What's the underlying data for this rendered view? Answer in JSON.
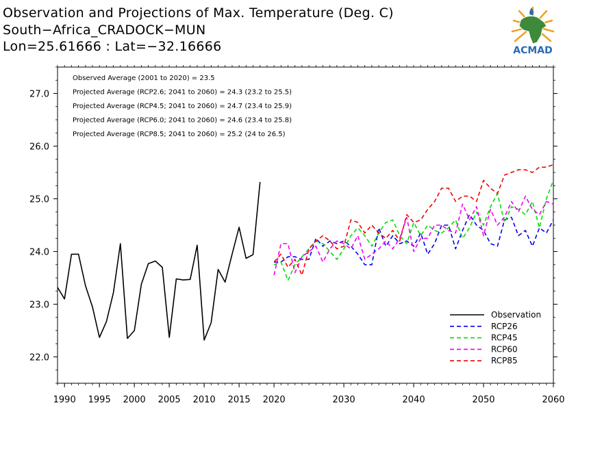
{
  "header": {
    "line1": "Observation and Projections of Max. Temperature (Deg. C)",
    "line2": "South−Africa_CRADOCK−MUN",
    "line3": "Lon=25.61666 : Lat=−32.16666"
  },
  "logo": {
    "text": "ACMAD",
    "icon": "africa-map-logo",
    "color_blue": "#2a6ab3",
    "color_green": "#3d8a3a",
    "color_orange": "#f0a020"
  },
  "chart_data": {
    "type": "line",
    "xlim": [
      1989,
      2060
    ],
    "ylim": [
      21.5,
      27.5
    ],
    "grid": false,
    "x_ticks": [
      {
        "value": 1990,
        "label": "1990"
      },
      {
        "value": 1995,
        "label": "1995"
      },
      {
        "value": 2000,
        "label": "2000"
      },
      {
        "value": 2005,
        "label": "2005"
      },
      {
        "value": 2010,
        "label": "2010"
      },
      {
        "value": 2015,
        "label": "2015"
      },
      {
        "value": 2020,
        "label": "2020"
      },
      {
        "value": 2030,
        "label": "2030"
      },
      {
        "value": 2040,
        "label": "2040"
      },
      {
        "value": 2050,
        "label": "2050"
      },
      {
        "value": 2060,
        "label": "2060"
      }
    ],
    "y_ticks": [
      {
        "value": 22,
        "label": "22.0"
      },
      {
        "value": 23,
        "label": "23.0"
      },
      {
        "value": 24,
        "label": "24.0"
      },
      {
        "value": 25,
        "label": "25.0"
      },
      {
        "value": 26,
        "label": "26.0"
      },
      {
        "value": 27,
        "label": "27.0"
      }
    ],
    "annotations": [
      "Observed Average (2001 to 2020) = 23.5",
      "Projected Average (RCP2.6; 2041 to 2060) = 24.3 (23.2 to 25.5)",
      "Projected Average (RCP4.5; 2041 to 2060) = 24.7 (23.4 to 25.9)",
      "Projected Average (RCP6.0; 2041 to 2060) = 24.6 (23.4 to 25.8)",
      "Projected Average (RCP8.5; 2041 to 2060) = 25.2 (24 to 26.5)"
    ],
    "legend_position": "bottom-right",
    "series": [
      {
        "name": "Observation",
        "color": "#000000",
        "dashed": false,
        "x": [
          1989,
          1990,
          1991,
          1992,
          1993,
          1994,
          1995,
          1996,
          1997,
          1998,
          1999,
          2000,
          2001,
          2002,
          2003,
          2004,
          2005,
          2006,
          2007,
          2008,
          2009,
          2010,
          2011,
          2012,
          2013,
          2014,
          2015,
          2016,
          2017,
          2018,
          2019
        ],
        "y": [
          23.32,
          23.1,
          23.95,
          23.95,
          23.35,
          22.95,
          22.37,
          22.67,
          23.22,
          24.15,
          22.35,
          22.5,
          23.38,
          23.77,
          23.82,
          23.7,
          22.37,
          23.48,
          23.46,
          23.47,
          24.12,
          22.32,
          22.65,
          23.66,
          23.42,
          23.95,
          24.46,
          23.87,
          23.94,
          25.32,
          null
        ]
      },
      {
        "name": "RCP26",
        "color": "#0000ee",
        "dashed": true,
        "x": [
          2020,
          2021,
          2022,
          2023,
          2024,
          2025,
          2026,
          2027,
          2028,
          2029,
          2030,
          2031,
          2032,
          2033,
          2034,
          2035,
          2036,
          2037,
          2038,
          2039,
          2040,
          2041,
          2042,
          2043,
          2044,
          2045,
          2046,
          2047,
          2048,
          2049,
          2050,
          2051,
          2052,
          2053,
          2054,
          2055,
          2056,
          2057,
          2058,
          2059,
          2060
        ],
        "y": [
          23.8,
          23.8,
          23.9,
          23.9,
          23.85,
          23.85,
          24.25,
          24.1,
          24.2,
          24.15,
          24.2,
          24.1,
          23.95,
          23.75,
          23.75,
          24.45,
          24.1,
          24.3,
          24.15,
          24.2,
          24.1,
          24.35,
          23.95,
          24.15,
          24.5,
          24.5,
          24.05,
          24.4,
          24.7,
          24.5,
          24.4,
          24.15,
          24.1,
          24.6,
          24.65,
          24.3,
          24.4,
          24.1,
          24.45,
          24.35,
          24.6
        ]
      },
      {
        "name": "RCP45",
        "color": "#00dd00",
        "dashed": true,
        "x": [
          2020,
          2021,
          2022,
          2023,
          2024,
          2025,
          2026,
          2027,
          2028,
          2029,
          2030,
          2031,
          2032,
          2033,
          2034,
          2035,
          2036,
          2037,
          2038,
          2039,
          2040,
          2041,
          2042,
          2043,
          2044,
          2045,
          2046,
          2047,
          2048,
          2049,
          2050,
          2051,
          2052,
          2053,
          2054,
          2055,
          2056,
          2057,
          2058,
          2059,
          2060
        ],
        "y": [
          23.75,
          23.8,
          23.45,
          23.75,
          23.9,
          24.05,
          24.2,
          24.15,
          24.0,
          23.85,
          24.05,
          24.3,
          24.45,
          24.3,
          24.1,
          24.35,
          24.55,
          24.6,
          24.3,
          24.15,
          24.55,
          24.3,
          24.5,
          24.4,
          24.35,
          24.45,
          24.6,
          24.25,
          24.45,
          24.75,
          24.5,
          24.85,
          25.1,
          24.55,
          24.85,
          24.8,
          24.7,
          24.95,
          24.45,
          25.0,
          25.35
        ]
      },
      {
        "name": "RCP60",
        "color": "#ee00ee",
        "dashed": true,
        "x": [
          2020,
          2021,
          2022,
          2023,
          2024,
          2025,
          2026,
          2027,
          2028,
          2029,
          2030,
          2031,
          2032,
          2033,
          2034,
          2035,
          2036,
          2037,
          2038,
          2039,
          2040,
          2041,
          2042,
          2043,
          2044,
          2045,
          2046,
          2047,
          2048,
          2049,
          2050,
          2051,
          2052,
          2053,
          2054,
          2055,
          2056,
          2057,
          2058,
          2059,
          2060
        ],
        "y": [
          23.55,
          24.15,
          24.15,
          23.6,
          23.9,
          24.0,
          24.1,
          23.8,
          24.05,
          24.2,
          24.15,
          24.05,
          24.3,
          23.85,
          23.95,
          24.05,
          24.2,
          24.05,
          24.25,
          24.65,
          24.0,
          24.25,
          24.25,
          24.5,
          24.5,
          24.4,
          24.35,
          24.9,
          24.6,
          24.85,
          24.3,
          24.8,
          24.5,
          24.65,
          24.95,
          24.75,
          25.05,
          24.8,
          24.7,
          24.95,
          24.9
        ]
      },
      {
        "name": "RCP85",
        "color": "#ee0000",
        "dashed": true,
        "x": [
          2020,
          2021,
          2022,
          2023,
          2024,
          2025,
          2026,
          2027,
          2028,
          2029,
          2030,
          2031,
          2032,
          2033,
          2034,
          2035,
          2036,
          2037,
          2038,
          2039,
          2040,
          2041,
          2042,
          2043,
          2044,
          2045,
          2046,
          2047,
          2048,
          2049,
          2050,
          2051,
          2052,
          2053,
          2054,
          2055,
          2056,
          2057,
          2058,
          2059,
          2060
        ],
        "y": [
          23.8,
          23.95,
          23.7,
          23.85,
          23.55,
          24.05,
          24.2,
          24.3,
          24.2,
          24.05,
          24.1,
          24.6,
          24.55,
          24.35,
          24.5,
          24.35,
          24.25,
          24.4,
          24.2,
          24.7,
          24.55,
          24.6,
          24.8,
          24.95,
          25.2,
          25.2,
          24.95,
          25.05,
          25.05,
          24.95,
          25.35,
          25.2,
          25.1,
          25.45,
          25.5,
          25.55,
          25.55,
          25.5,
          25.6,
          25.6,
          25.65
        ]
      }
    ]
  }
}
